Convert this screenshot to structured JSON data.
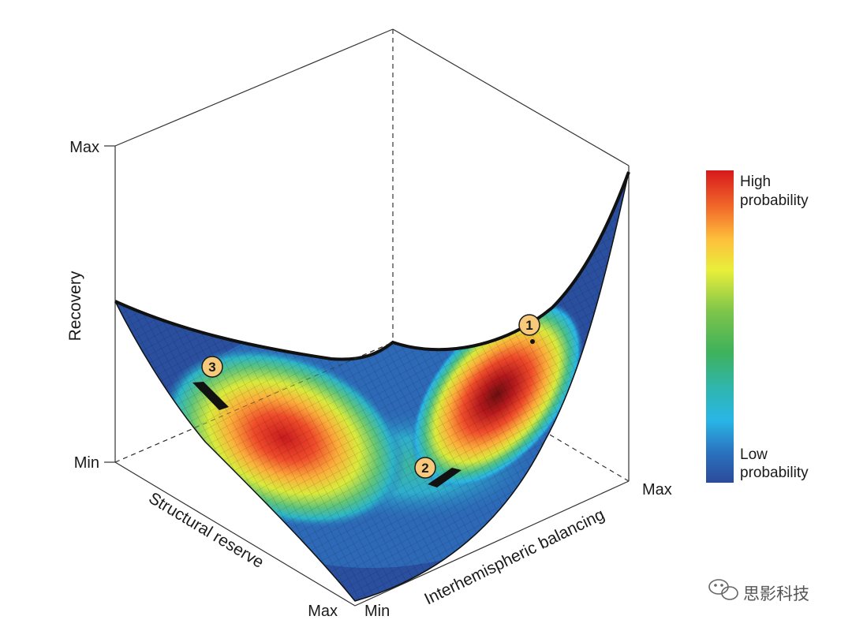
{
  "axes": {
    "recovery": {
      "title": "Recovery",
      "max": "Max",
      "min": "Min"
    },
    "structural_reserve": {
      "title": "Structural reserve",
      "max": "Max"
    },
    "interhemispheric_balancing": {
      "title": "Interhemispheric balancing",
      "min": "Min",
      "max": "Max"
    }
  },
  "legend": {
    "high_line1": "High",
    "high_line2": "probability",
    "low_line1": "Low",
    "low_line2": "probability",
    "colors": [
      "#d7191c",
      "#f26b2a",
      "#fdbf3c",
      "#e9ef3a",
      "#7ec54a",
      "#3fb25a",
      "#2fb5b0",
      "#29b6e6",
      "#2a74bf",
      "#2b4a9a"
    ]
  },
  "markers": [
    {
      "label": "1"
    },
    {
      "label": "2"
    },
    {
      "label": "3"
    }
  ],
  "watermark": {
    "text": "思影科技",
    "icon": "wechat-icon"
  }
}
